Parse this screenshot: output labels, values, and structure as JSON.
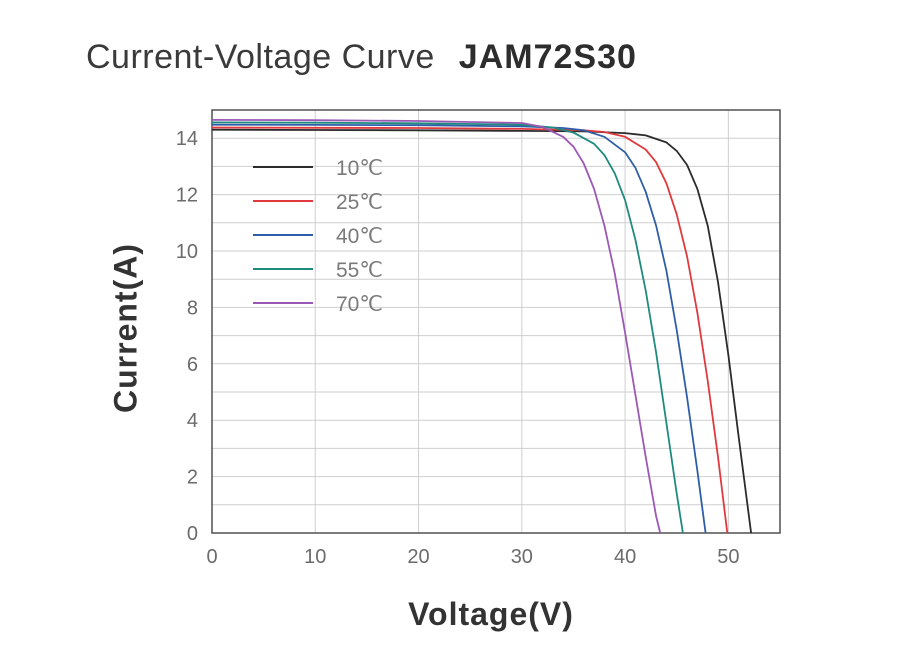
{
  "title": {
    "main": "Current-Voltage Curve",
    "model": "JAM72S30"
  },
  "colors": {
    "10": "#2b2b2b",
    "25": "#e03a3e",
    "40": "#2f5ea8",
    "55": "#1f8a7e",
    "70": "#9b59b6",
    "grid": "#cfcfcf",
    "axis": "#444444"
  },
  "chart_data": {
    "type": "line",
    "title": "Current-Voltage Curve JAM72S30",
    "xlabel": "Voltage(V)",
    "ylabel": "Current(A)",
    "xlim": [
      0,
      55
    ],
    "ylim": [
      0,
      15
    ],
    "xticks": [
      "0",
      "10",
      "20",
      "30",
      "40",
      "50"
    ],
    "yticks": [
      "0",
      "2",
      "4",
      "6",
      "8",
      "10",
      "12",
      "14"
    ],
    "grid": true,
    "legend_position": "upper-left",
    "series": [
      {
        "name": "10℃",
        "color_key": "10",
        "isc": 14.3,
        "voc": 52.2,
        "x": [
          0,
          10,
          20,
          30,
          36,
          40,
          42,
          44,
          45,
          46,
          47,
          48,
          49,
          50,
          51,
          52.2
        ],
        "y": [
          14.3,
          14.29,
          14.28,
          14.26,
          14.24,
          14.18,
          14.1,
          13.85,
          13.55,
          13.05,
          12.2,
          10.9,
          8.9,
          6.3,
          3.4,
          0
        ]
      },
      {
        "name": "25℃",
        "color_key": "25",
        "isc": 14.38,
        "voc": 49.9,
        "x": [
          0,
          10,
          20,
          30,
          36,
          38,
          40,
          42,
          43,
          44,
          45,
          46,
          47,
          48,
          49,
          49.9
        ],
        "y": [
          14.38,
          14.37,
          14.36,
          14.33,
          14.28,
          14.22,
          14.05,
          13.6,
          13.15,
          12.4,
          11.3,
          9.8,
          7.8,
          5.4,
          2.7,
          0
        ]
      },
      {
        "name": "40℃",
        "color_key": "40",
        "isc": 14.48,
        "voc": 47.8,
        "x": [
          0,
          10,
          20,
          30,
          34,
          36,
          38,
          40,
          41,
          42,
          43,
          44,
          45,
          46,
          47,
          47.8
        ],
        "y": [
          14.48,
          14.47,
          14.46,
          14.42,
          14.36,
          14.28,
          14.05,
          13.5,
          12.95,
          12.1,
          10.9,
          9.3,
          7.2,
          4.8,
          2.2,
          0
        ]
      },
      {
        "name": "55℃",
        "color_key": "55",
        "isc": 14.56,
        "voc": 45.6,
        "x": [
          0,
          10,
          20,
          30,
          33,
          35,
          37,
          38,
          39,
          40,
          41,
          42,
          43,
          44,
          45,
          45.6
        ],
        "y": [
          14.56,
          14.55,
          14.53,
          14.48,
          14.38,
          14.2,
          13.8,
          13.4,
          12.75,
          11.8,
          10.4,
          8.6,
          6.4,
          3.9,
          1.4,
          0
        ]
      },
      {
        "name": "70℃",
        "color_key": "70",
        "isc": 14.65,
        "voc": 43.4,
        "x": [
          0,
          10,
          20,
          30,
          32,
          34,
          35,
          36,
          37,
          38,
          39,
          40,
          41,
          42,
          43,
          43.4
        ],
        "y": [
          14.65,
          14.64,
          14.61,
          14.54,
          14.4,
          14.05,
          13.7,
          13.1,
          12.2,
          10.9,
          9.2,
          7.1,
          4.9,
          2.7,
          0.6,
          0
        ]
      }
    ]
  }
}
